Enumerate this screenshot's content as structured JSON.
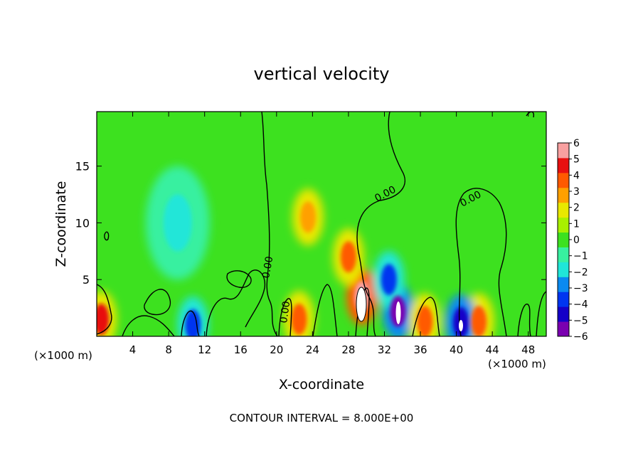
{
  "chart_data": {
    "type": "heatmap",
    "title": "vertical velocity",
    "xlabel": "X-coordinate",
    "ylabel": "Z-coordinate",
    "x_unit_left": "(×1000 m)",
    "x_unit_right": "(×1000 m)",
    "xlim": [
      0,
      50
    ],
    "ylim": [
      0,
      19.8
    ],
    "xticks": [
      4,
      8,
      12,
      16,
      20,
      24,
      28,
      32,
      36,
      40,
      44,
      48
    ],
    "yticks": [
      5,
      10,
      15
    ],
    "colorbar": {
      "ticks": [
        "6",
        "5",
        "4",
        "3",
        "2",
        "1",
        "0",
        "−1",
        "−2",
        "−3",
        "−4",
        "−5",
        "−6"
      ],
      "range": [
        -6,
        6
      ]
    },
    "contour_labels": [
      "0.00",
      "0.00",
      "0.00",
      "0.00"
    ],
    "contour_interval_text": "CONTOUR INTERVAL = 8.000E+00",
    "features": [
      {
        "x": 29.5,
        "z": 3.5,
        "value": 6.5
      },
      {
        "x": 23.5,
        "z": 10.5,
        "value": 3.0
      },
      {
        "x": 28.0,
        "z": 7.0,
        "value": 3.5
      },
      {
        "x": 33.5,
        "z": 2.2,
        "value": -6.0
      },
      {
        "x": 32.5,
        "z": 5.0,
        "value": -4.5
      },
      {
        "x": 9.0,
        "z": 10.0,
        "value": -1.7
      },
      {
        "x": 0.5,
        "z": 1.5,
        "value": 4.5
      },
      {
        "x": 22.5,
        "z": 1.5,
        "value": 4.0
      },
      {
        "x": 36.5,
        "z": 1.3,
        "value": 3.5
      },
      {
        "x": 42.5,
        "z": 1.3,
        "value": 4.0
      },
      {
        "x": 10.7,
        "z": 1.0,
        "value": -4.0
      },
      {
        "x": 40.5,
        "z": 1.2,
        "value": -5.0
      }
    ]
  }
}
